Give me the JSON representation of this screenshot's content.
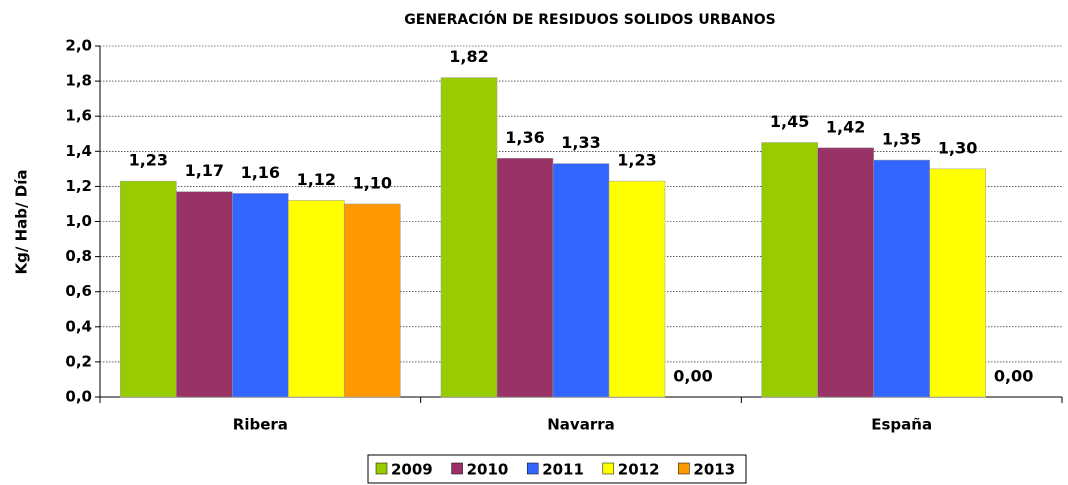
{
  "chart_data": {
    "type": "bar",
    "title": "GENERACIÓN DE RESIDUOS SOLIDOS URBANOS",
    "y_label": "Kg/ Hab/ Día",
    "categories": [
      "Ribera",
      "Navarra",
      "España"
    ],
    "series": [
      {
        "name": "2009",
        "color": "#99cc00",
        "values": [
          1.23,
          1.82,
          1.45
        ],
        "value_labels": [
          "1,23",
          "1,82",
          "1,45"
        ]
      },
      {
        "name": "2010",
        "color": "#993366",
        "values": [
          1.17,
          1.36,
          1.42
        ],
        "value_labels": [
          "1,17",
          "1,36",
          "1,42"
        ]
      },
      {
        "name": "2011",
        "color": "#3366ff",
        "values": [
          1.16,
          1.33,
          1.35
        ],
        "value_labels": [
          "1,16",
          "1,33",
          "1,35"
        ]
      },
      {
        "name": "2012",
        "color": "#ffff00",
        "values": [
          1.12,
          1.23,
          1.3
        ],
        "value_labels": [
          "1,12",
          "1,23",
          "1,30"
        ]
      },
      {
        "name": "2013",
        "color": "#ff9900",
        "values": [
          1.1,
          0,
          0
        ],
        "value_labels": [
          "1,10",
          "0,00",
          "0,00"
        ]
      }
    ],
    "ylim": [
      0,
      2
    ],
    "yticks": [
      {
        "value": 0,
        "label": "0,0"
      },
      {
        "value": 0.2,
        "label": "0,2"
      },
      {
        "value": 0.4,
        "label": "0,4"
      },
      {
        "value": 0.6,
        "label": "0,6"
      },
      {
        "value": 0.8,
        "label": "0,8"
      },
      {
        "value": 1,
        "label": "1,0"
      },
      {
        "value": 1.2,
        "label": "1,2"
      },
      {
        "value": 1.4,
        "label": "1,4"
      },
      {
        "value": 1.6,
        "label": "1,6"
      },
      {
        "value": 1.8,
        "label": "1,8"
      },
      {
        "value": 2,
        "label": "2,0"
      }
    ],
    "grid": true,
    "legend": "bottom"
  }
}
